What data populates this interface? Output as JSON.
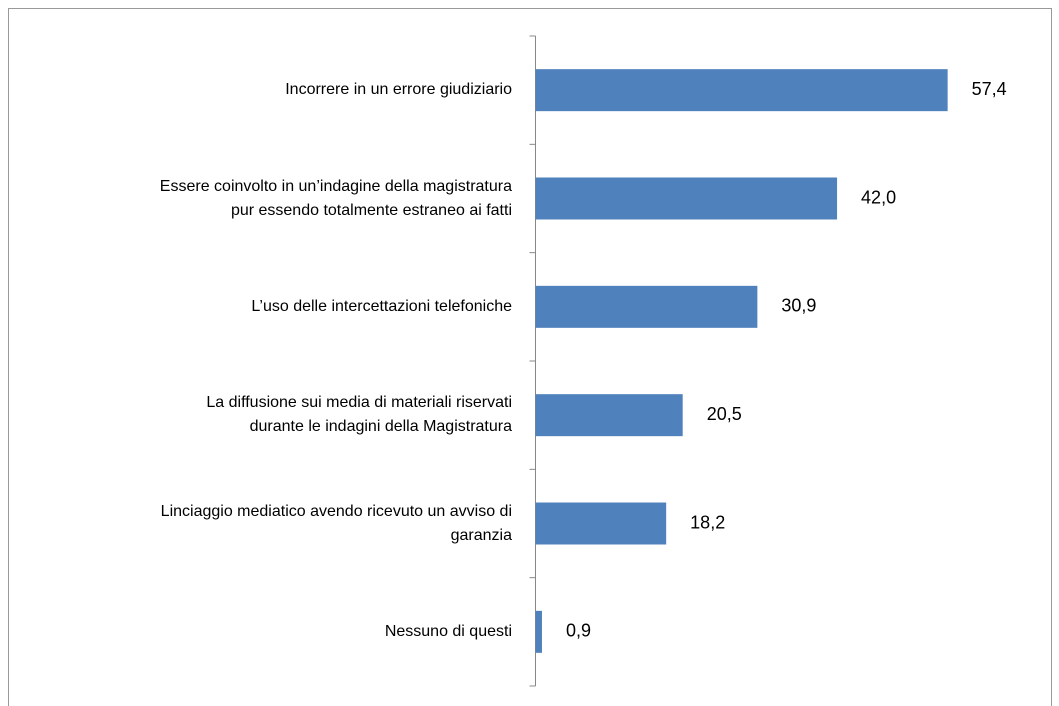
{
  "chart_data": {
    "type": "bar",
    "orientation": "horizontal",
    "categories": [
      "Incorrere in un errore giudiziario",
      "Essere coinvolto in un’indagine della magistratura\npur essendo totalmente estraneo ai fatti",
      "L’uso delle intercettazioni telefoniche",
      "La diffusione sui media di materiali riservati\ndurante le indagini della Magistratura",
      "Linciaggio mediatico avendo ricevuto un avviso di\ngaranzia",
      "Nessuno di questi"
    ],
    "values": [
      57.4,
      42.0,
      30.9,
      20.5,
      18.2,
      0.9
    ],
    "value_labels": [
      "57,4",
      "42,0",
      "30,9",
      "20,5",
      "18,2",
      "0,9"
    ],
    "color": "#4f81bd"
  }
}
